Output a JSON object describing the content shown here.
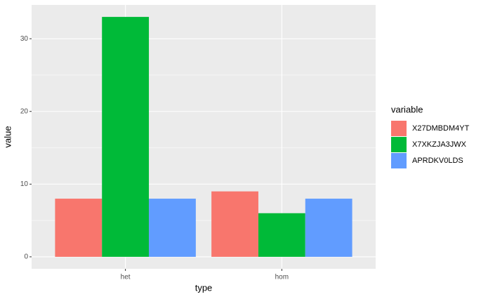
{
  "chart_data": {
    "type": "bar",
    "x_label": "type",
    "y_label": "value",
    "legend_title": "variable",
    "categories": [
      "het",
      "hom"
    ],
    "series": [
      {
        "name": "X27DMBDM4YT",
        "color": "#F8766D",
        "values": [
          8,
          9
        ]
      },
      {
        "name": "X7XKZJA3JWX",
        "color": "#00BA38",
        "values": [
          33,
          6
        ]
      },
      {
        "name": "APRDKV0LDS",
        "color": "#619CFF",
        "values": [
          8,
          8
        ]
      }
    ],
    "ylim": [
      -1.65,
      34.65
    ],
    "yticks": [
      0,
      10,
      20,
      30
    ],
    "grid": true,
    "legend": "right"
  }
}
